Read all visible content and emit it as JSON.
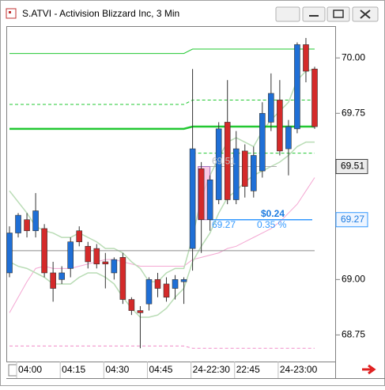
{
  "chart_data": {
    "type": "candlestick",
    "title": "S.ATVI - Activision Blizzard Inc, 3 Min",
    "categories": [
      null,
      "04:00",
      null,
      null,
      null,
      null,
      "04:15",
      null,
      null,
      null,
      null,
      "04:30",
      null,
      null,
      null,
      null,
      "04:45",
      null,
      null,
      null,
      null,
      "24-22:30",
      null,
      null,
      null,
      null,
      "22:45",
      null,
      null,
      null,
      null,
      "24-23:00",
      null,
      null,
      null,
      null
    ],
    "open": [
      69.03,
      69.21,
      69.27,
      69.22,
      69.23,
      69.03,
      69.0,
      69.05,
      69.22,
      69.15,
      69.14,
      69.08,
      69.03,
      69.1,
      68.91,
      68.86,
      68.89,
      69.0,
      68.98,
      68.96,
      68.99,
      69.14,
      69.5,
      69.27,
      69.36,
      69.71,
      69.36,
      69.58,
      69.4,
      69.49,
      69.71,
      69.81,
      69.59,
      69.68,
      70.06,
      69.95
    ],
    "high": [
      69.24,
      69.3,
      69.3,
      69.39,
      69.25,
      69.08,
      69.06,
      69.19,
      69.24,
      69.17,
      69.16,
      69.12,
      69.1,
      69.12,
      68.92,
      68.88,
      69.01,
      69.03,
      69.01,
      69.02,
      69.01,
      69.95,
      69.53,
      69.47,
      69.71,
      69.9,
      69.67,
      69.61,
      69.6,
      69.8,
      69.93,
      69.9,
      69.72,
      70.07,
      70.09,
      69.96
    ],
    "low": [
      69.01,
      69.19,
      69.19,
      69.19,
      69.01,
      68.9,
      68.98,
      69.01,
      69.15,
      69.05,
      69.05,
      68.96,
      69.0,
      68.89,
      68.84,
      68.69,
      68.86,
      68.92,
      68.9,
      68.91,
      68.89,
      69.04,
      69.12,
      69.22,
      69.34,
      69.34,
      69.34,
      69.37,
      69.37,
      69.46,
      69.67,
      69.56,
      69.47,
      69.66,
      69.89,
      69.68
    ],
    "close": [
      69.21,
      69.29,
      69.22,
      69.31,
      69.03,
      68.96,
      69.03,
      69.17,
      69.17,
      69.08,
      69.07,
      69.07,
      69.09,
      68.91,
      68.86,
      68.85,
      69.0,
      68.96,
      68.92,
      69.0,
      69.0,
      69.59,
      69.27,
      69.45,
      69.68,
      69.36,
      69.59,
      69.42,
      69.56,
      69.75,
      69.84,
      69.58,
      69.69,
      70.06,
      69.94,
      69.69
    ],
    "up_color": "#1f6fd6",
    "down_color": "#d42a2a",
    "lines": [
      {
        "color": "#f4a6d2",
        "width": 1,
        "values": [
          68.85,
          68.92,
          68.99,
          69.05,
          69.06,
          69.05,
          69.05,
          69.05,
          69.06,
          69.07,
          69.08,
          69.09,
          69.09,
          69.08,
          69.07,
          69.06,
          69.06,
          69.06,
          69.06,
          69.06,
          69.06,
          69.09,
          69.1,
          69.11,
          69.12,
          69.14,
          69.15,
          69.17,
          69.19,
          69.21,
          69.23,
          69.26,
          69.3,
          69.34,
          69.4,
          69.46
        ]
      },
      {
        "color": "#b9dcb5",
        "width": 1.5,
        "values": [
          69.4,
          69.35,
          69.3,
          69.24,
          69.22,
          69.21,
          69.19,
          69.19,
          69.21,
          69.19,
          69.17,
          69.14,
          69.14,
          69.12,
          69.08,
          69.05,
          68.99,
          68.99,
          69.03,
          69.05,
          69.05,
          69.19,
          69.37,
          69.47,
          69.55,
          69.62,
          69.64,
          69.62,
          69.6,
          69.67,
          69.72,
          69.76,
          69.8,
          69.9,
          69.94,
          69.95
        ]
      },
      {
        "color": "#b9dcb5",
        "width": 1.5,
        "values": [
          69.08,
          69.06,
          69.05,
          69.03,
          69.01,
          68.98,
          68.98,
          68.98,
          69.01,
          69.03,
          69.03,
          69.01,
          68.98,
          68.92,
          68.87,
          68.83,
          68.83,
          68.84,
          68.87,
          68.92,
          68.96,
          69.08,
          69.15,
          69.21,
          69.3,
          69.37,
          69.4,
          69.44,
          69.47,
          69.49,
          69.51,
          69.53,
          69.56,
          69.6,
          69.62,
          69.62
        ]
      },
      {
        "color": "#22c832",
        "width": 1,
        "values": [
          70.02,
          70.02,
          70.02,
          70.02,
          70.02,
          70.02,
          70.02,
          70.02,
          70.02,
          70.02,
          70.02,
          70.02,
          70.02,
          70.02,
          70.02,
          70.02,
          70.02,
          70.02,
          70.02,
          70.02,
          70.02,
          70.04,
          70.04,
          70.04,
          70.04,
          70.04,
          70.04,
          70.04,
          70.04,
          70.04,
          70.04,
          70.04,
          70.04,
          70.04,
          70.04,
          70.04
        ]
      },
      {
        "color": "#22c832",
        "width": 1,
        "dash": true,
        "values": [
          69.79,
          69.79,
          69.79,
          69.79,
          69.79,
          69.79,
          69.79,
          69.79,
          69.79,
          69.79,
          69.79,
          69.79,
          69.79,
          69.79,
          69.79,
          69.79,
          69.79,
          69.79,
          69.79,
          69.79,
          69.79,
          69.81,
          69.81,
          69.81,
          69.81,
          69.81,
          69.81,
          69.81,
          69.81,
          69.81,
          69.81,
          69.81,
          69.81,
          69.81,
          69.81,
          69.81
        ]
      },
      {
        "color": "#22c832",
        "width": 2.5,
        "values": [
          69.68,
          69.68,
          69.68,
          69.68,
          69.68,
          69.68,
          69.68,
          69.68,
          69.68,
          69.68,
          69.68,
          69.68,
          69.68,
          69.68,
          69.68,
          69.68,
          69.68,
          69.68,
          69.68,
          69.68,
          69.68,
          69.69,
          69.69,
          69.69,
          69.69,
          69.69,
          69.69,
          69.69,
          69.69,
          69.69,
          69.69,
          69.69,
          69.69,
          69.69,
          69.69,
          69.69
        ]
      },
      {
        "color": "#22c832",
        "width": 1,
        "dash": true,
        "values": [
          null,
          null,
          null,
          null,
          null,
          null,
          null,
          null,
          null,
          null,
          null,
          null,
          null,
          null,
          null,
          null,
          null,
          null,
          null,
          null,
          null,
          69.57,
          69.57,
          69.57,
          69.57,
          69.57,
          69.57,
          69.57,
          69.57,
          69.57,
          69.57,
          69.57,
          69.57,
          69.57,
          69.57,
          69.57
        ]
      },
      {
        "color": "#f08cc8",
        "width": 1,
        "dash": true,
        "values": [
          68.7,
          68.7,
          68.7,
          68.7,
          68.7,
          68.7,
          68.7,
          68.7,
          68.7,
          68.7,
          68.7,
          68.7,
          68.7,
          68.7,
          68.7,
          68.7,
          68.7,
          68.7,
          68.7,
          68.7,
          68.7,
          68.69,
          68.69,
          68.69,
          68.69,
          68.69,
          68.69,
          68.69,
          68.69,
          68.69,
          68.69,
          68.69,
          68.69,
          68.69,
          68.69,
          68.69
        ]
      },
      {
        "color": "#8c8c8c",
        "width": 1,
        "values": [
          69.13,
          69.13,
          69.13,
          69.13,
          69.13,
          69.13,
          69.13,
          69.13,
          69.13,
          69.13,
          69.13,
          69.13,
          69.13,
          69.13,
          69.13,
          69.13,
          69.13,
          69.13,
          69.13,
          69.13,
          69.13,
          69.13,
          69.13,
          69.13,
          69.13,
          69.13,
          69.13,
          69.13,
          69.13,
          69.13,
          69.13,
          69.13,
          69.13,
          69.13,
          69.13,
          69.13
        ]
      }
    ],
    "ylim": [
      68.63,
      70.14
    ],
    "yticks": [
      {
        "value": 70,
        "label": "70.00"
      },
      {
        "value": 69.75,
        "label": "69.75"
      },
      {
        "value": 69,
        "label": "69.00"
      },
      {
        "value": 68.75,
        "label": "68.75"
      }
    ],
    "price_tags": [
      69.51,
      69.27
    ],
    "measure": {
      "from": 69.27,
      "to": 69.51,
      "change": {
        "value": 0.24,
        "label": "$0.24"
      },
      "percent": {
        "value": 0.35,
        "label": "0.35 %"
      }
    }
  }
}
